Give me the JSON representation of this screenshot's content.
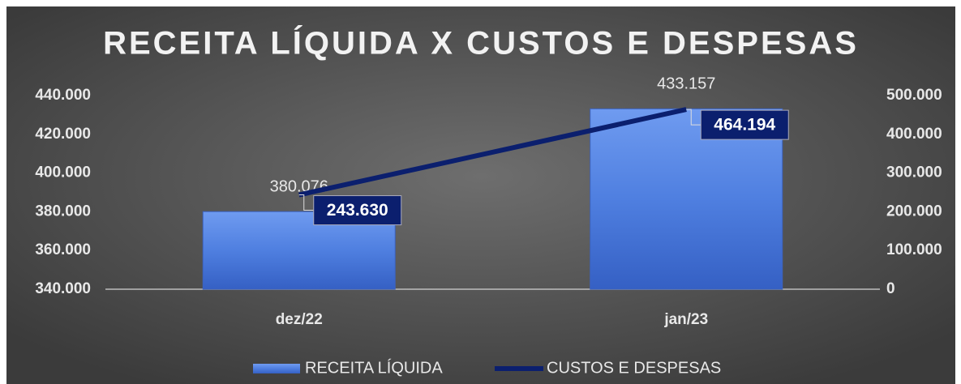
{
  "chart_data": {
    "type": "combo",
    "title": "RECEITA LÍQUIDA X CUSTOS E DESPESAS",
    "categories": [
      "dez/22",
      "jan/23"
    ],
    "series": [
      {
        "name": "RECEITA LÍQUIDA",
        "type": "bar",
        "color": "#4f7fe0",
        "values": [
          380076,
          433157
        ],
        "value_labels": [
          "380.076",
          "433.157"
        ]
      },
      {
        "name": "CUSTOS E DESPESAS",
        "type": "line",
        "axis": "y2",
        "color": "#0b1f6e",
        "values": [
          243630,
          464194
        ],
        "value_labels": [
          "243.630",
          "464.194"
        ]
      }
    ],
    "ylim": [
      340000,
      440000
    ],
    "yticks": [
      {
        "value": 340000,
        "label": "340.000"
      },
      {
        "value": 360000,
        "label": "360.000"
      },
      {
        "value": 380000,
        "label": "380.000"
      },
      {
        "value": 400000,
        "label": "400.000"
      },
      {
        "value": 420000,
        "label": "420.000"
      },
      {
        "value": 440000,
        "label": "440.000"
      }
    ],
    "y2lim": [
      0,
      500000
    ],
    "y2ticks": [
      0,
      {
        "value": 100000,
        "label": "100.000"
      },
      {
        "value": 200000,
        "label": "200.000"
      },
      {
        "value": 300000,
        "label": "300.000"
      },
      {
        "value": 400000,
        "label": "400.000"
      },
      {
        "value": 500000,
        "label": "500.000"
      }
    ],
    "legend": "bottom"
  }
}
